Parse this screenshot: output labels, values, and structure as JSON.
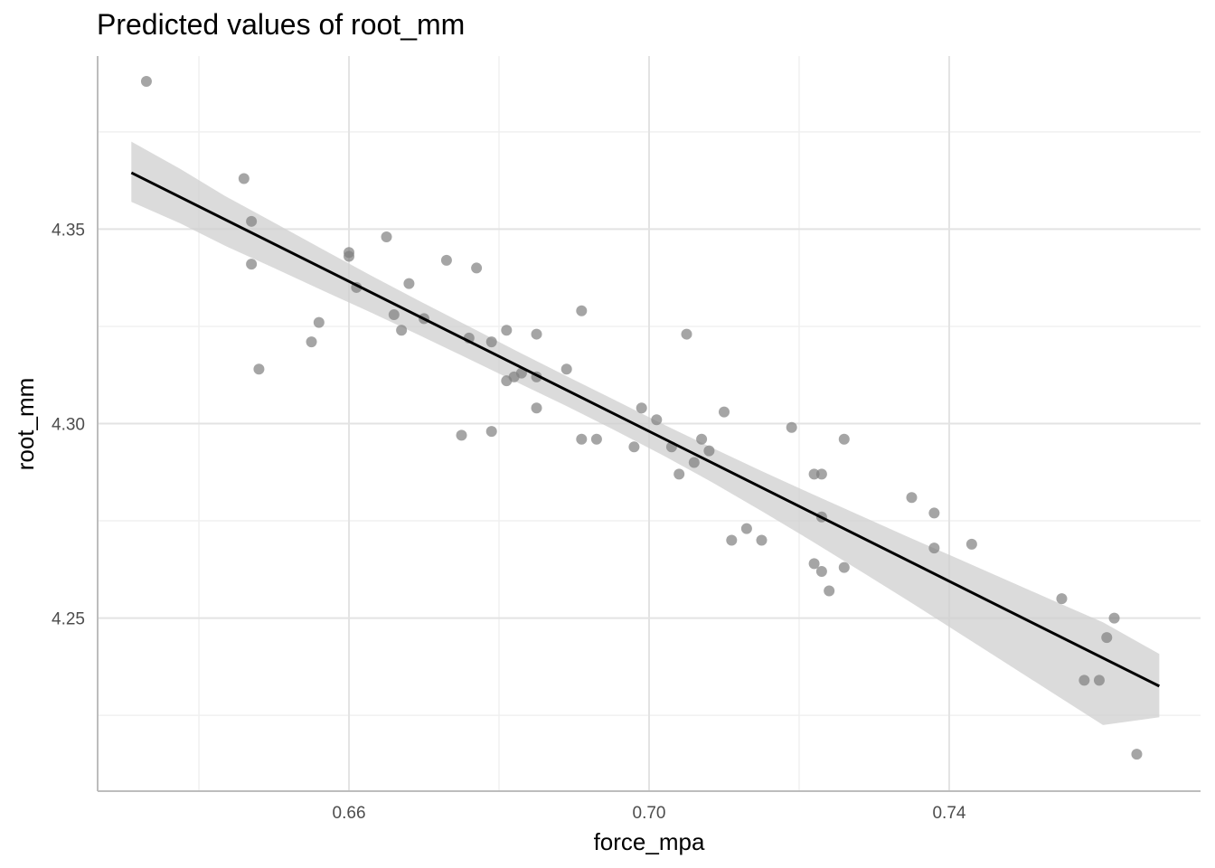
{
  "chart_data": {
    "type": "scatter",
    "title": "Predicted values of root_mm",
    "xlabel": "force_mpa",
    "ylabel": "root_mm",
    "xlim": [
      0.6265,
      0.7735
    ],
    "ylim": [
      4.2055,
      4.3945
    ],
    "x_major_ticks": [
      0.66,
      0.7,
      0.74
    ],
    "x_tick_labels": [
      "0.66",
      "0.70",
      "0.74"
    ],
    "x_minor_ticks": [
      0.64,
      0.68,
      0.72
    ],
    "y_major_ticks": [
      4.25,
      4.3,
      4.35
    ],
    "y_tick_labels": [
      "4.25",
      "4.30",
      "4.35"
    ],
    "y_minor_ticks": [
      4.225,
      4.275,
      4.325,
      4.375
    ],
    "grid": true,
    "colors": {
      "points": "#7f7f7f",
      "line": "#000000",
      "ribbon": "#cfcfcf",
      "grid": "#e3e3e3"
    },
    "fit_line": {
      "x": [
        0.631,
        0.768
      ],
      "y": [
        4.3645,
        4.2325
      ]
    },
    "confidence_band": {
      "x": [
        0.631,
        0.6375,
        0.6435,
        0.65,
        0.6565,
        0.663,
        0.6695,
        0.676,
        0.6825,
        0.689,
        0.6955,
        0.702,
        0.7085,
        0.715,
        0.7215,
        0.728,
        0.7345,
        0.741,
        0.7475,
        0.754,
        0.7605,
        0.768
      ],
      "lower": [
        4.357,
        4.3515,
        4.3457,
        4.34,
        4.3342,
        4.3285,
        4.3226,
        4.3166,
        4.3105,
        4.3045,
        4.2982,
        4.2917,
        4.2848,
        4.2775,
        4.27,
        4.2623,
        4.2545,
        4.2465,
        4.2385,
        4.2305,
        4.2225,
        4.2245
      ],
      "upper": [
        4.3725,
        4.3655,
        4.3585,
        4.3517,
        4.3448,
        4.338,
        4.3314,
        4.325,
        4.3185,
        4.3122,
        4.306,
        4.2997,
        4.2937,
        4.2878,
        4.2821,
        4.2765,
        4.2709,
        4.2654,
        4.2599,
        4.2544,
        4.2489,
        4.2408
      ]
    },
    "points": {
      "x": [
        0.633,
        0.646,
        0.647,
        0.647,
        0.648,
        0.655,
        0.656,
        0.66,
        0.66,
        0.661,
        0.665,
        0.666,
        0.667,
        0.668,
        0.67,
        0.673,
        0.675,
        0.676,
        0.677,
        0.679,
        0.679,
        0.681,
        0.681,
        0.682,
        0.683,
        0.685,
        0.685,
        0.685,
        0.689,
        0.691,
        0.691,
        0.693,
        0.698,
        0.699,
        0.701,
        0.703,
        0.704,
        0.705,
        0.706,
        0.707,
        0.708,
        0.71,
        0.711,
        0.713,
        0.715,
        0.719,
        0.722,
        0.722,
        0.723,
        0.723,
        0.723,
        0.724,
        0.726,
        0.726,
        0.735,
        0.738,
        0.738,
        0.743,
        0.755,
        0.758,
        0.76,
        0.761,
        0.762,
        0.765
      ],
      "y": [
        4.388,
        4.363,
        4.352,
        4.341,
        4.314,
        4.321,
        4.326,
        4.344,
        4.343,
        4.335,
        4.348,
        4.328,
        4.324,
        4.336,
        4.327,
        4.342,
        4.297,
        4.322,
        4.34,
        4.321,
        4.298,
        4.324,
        4.311,
        4.312,
        4.313,
        4.323,
        4.312,
        4.304,
        4.314,
        4.329,
        4.296,
        4.296,
        4.294,
        4.304,
        4.301,
        4.294,
        4.287,
        4.323,
        4.29,
        4.296,
        4.293,
        4.303,
        4.27,
        4.273,
        4.27,
        4.299,
        4.287,
        4.264,
        4.287,
        4.276,
        4.262,
        4.257,
        4.296,
        4.263,
        4.281,
        4.277,
        4.268,
        4.269,
        4.255,
        4.234,
        4.234,
        4.245,
        4.25,
        4.215
      ]
    }
  }
}
